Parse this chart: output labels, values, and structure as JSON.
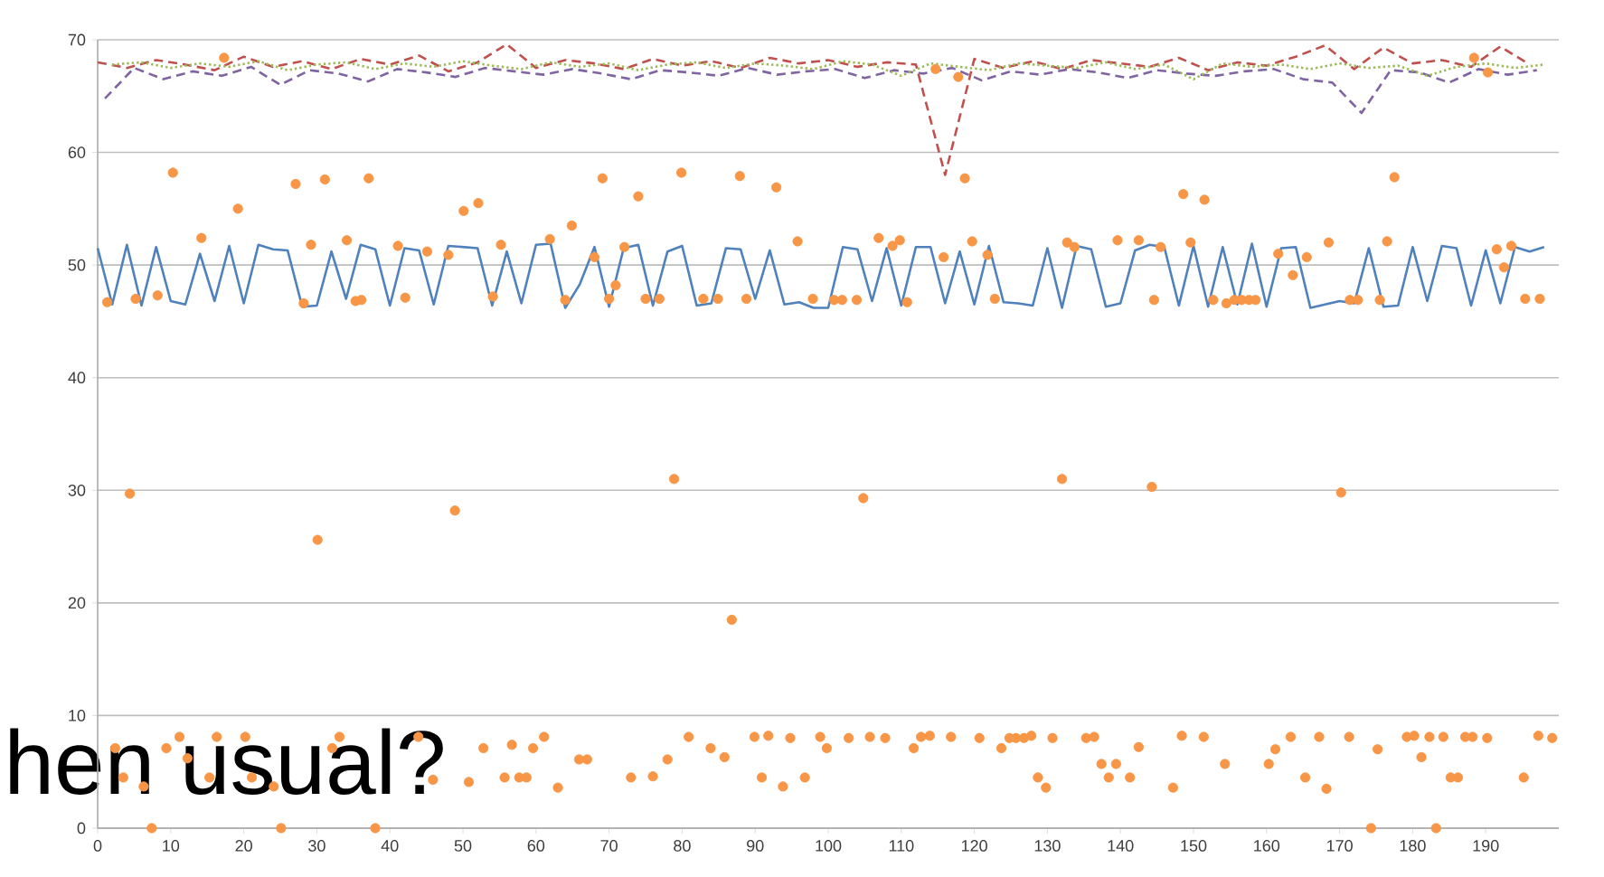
{
  "chart_data": {
    "type": "line",
    "annotations": [
      "hen usual?"
    ],
    "xlim": [
      0,
      200
    ],
    "xticks": [
      0,
      10,
      20,
      30,
      40,
      50,
      60,
      70,
      80,
      90,
      100,
      110,
      120,
      130,
      140,
      150,
      160,
      170,
      180,
      190
    ],
    "ylim": [
      0,
      70
    ],
    "yticks": [
      0,
      10,
      20,
      30,
      40,
      50,
      60,
      70
    ],
    "grid": "y",
    "series": [
      {
        "color": "#4f81bd",
        "line_style": "solid",
        "marker": "none",
        "x": [
          0,
          2,
          4,
          6,
          8,
          10,
          12,
          14,
          16,
          18,
          20,
          22,
          24,
          26,
          28,
          30,
          32,
          34,
          36,
          38,
          40,
          42,
          44,
          46,
          48,
          50,
          52,
          54,
          56,
          58,
          60,
          62,
          64,
          66,
          68,
          70,
          72,
          74,
          76,
          78,
          80,
          82,
          84,
          86,
          88,
          90,
          92,
          94,
          96,
          98,
          100,
          102,
          104,
          106,
          108,
          110,
          112,
          114,
          116,
          118,
          120,
          122,
          124,
          126,
          128,
          130,
          132,
          134,
          136,
          138,
          140,
          142,
          144,
          146,
          148,
          150,
          152,
          154,
          156,
          158,
          160,
          162,
          164,
          166,
          168,
          170,
          172,
          174,
          176,
          178,
          180,
          182,
          184,
          186,
          188,
          190,
          192,
          194,
          196,
          198
        ],
        "values": [
          51.5,
          46.5,
          51.8,
          46.4,
          51.6,
          46.8,
          46.5,
          51.0,
          46.8,
          51.7,
          46.6,
          51.8,
          51.4,
          51.3,
          46.3,
          46.4,
          51.2,
          47.0,
          51.8,
          51.4,
          46.4,
          51.5,
          51.3,
          46.5,
          51.7,
          51.6,
          51.5,
          46.4,
          51.2,
          46.6,
          51.8,
          51.9,
          46.2,
          48.3,
          51.6,
          46.3,
          51.5,
          51.8,
          46.4,
          51.2,
          51.7,
          46.4,
          46.6,
          51.5,
          51.4,
          47.0,
          51.3,
          46.5,
          46.7,
          46.2,
          46.2,
          51.6,
          51.4,
          46.8,
          51.5,
          46.4,
          51.6,
          51.6,
          46.6,
          51.2,
          46.5,
          51.7,
          46.7,
          46.6,
          46.4,
          51.5,
          46.2,
          51.7,
          51.4,
          46.3,
          46.6,
          51.3,
          51.8,
          51.6,
          46.4,
          51.7,
          46.3,
          51.6,
          46.5,
          51.9,
          46.3,
          51.5,
          51.6,
          46.2,
          46.5,
          46.8,
          46.6,
          51.5,
          46.3,
          46.4,
          51.6,
          46.8,
          51.7,
          51.5,
          46.4,
          51.3,
          46.6,
          51.6,
          51.2,
          51.6
        ]
      },
      {
        "color": "#c0504d",
        "line_style": "dashed",
        "marker": "none",
        "x": [
          0,
          4,
          8,
          12,
          16,
          20,
          24,
          28,
          32,
          36,
          40,
          44,
          48,
          52,
          56,
          60,
          64,
          68,
          72,
          76,
          80,
          84,
          88,
          92,
          96,
          100,
          104,
          108,
          112,
          116,
          120,
          124,
          128,
          132,
          136,
          140,
          144,
          148,
          152,
          156,
          160,
          164,
          168,
          172,
          176,
          180,
          184,
          188,
          192,
          196
        ],
        "values": [
          68.0,
          67.5,
          68.2,
          67.8,
          67.3,
          68.5,
          67.6,
          68.1,
          67.4,
          68.3,
          67.8,
          68.6,
          67.2,
          68.0,
          69.6,
          67.5,
          68.2,
          67.9,
          67.4,
          68.3,
          67.7,
          68.1,
          67.5,
          68.4,
          67.9,
          68.2,
          67.6,
          68.0,
          67.8,
          58.0,
          68.3,
          67.5,
          68.1,
          67.4,
          68.2,
          67.9,
          67.6,
          68.4,
          67.3,
          68.0,
          67.7,
          68.5,
          69.5,
          67.4,
          69.3,
          67.9,
          68.2,
          67.6,
          69.4,
          67.8
        ]
      },
      {
        "color": "#8064a2",
        "line_style": "dashed",
        "marker": "none",
        "x": [
          1,
          5,
          9,
          13,
          17,
          21,
          25,
          29,
          33,
          37,
          41,
          45,
          49,
          53,
          57,
          61,
          65,
          69,
          73,
          77,
          81,
          85,
          89,
          93,
          97,
          101,
          105,
          109,
          113,
          117,
          121,
          125,
          129,
          133,
          137,
          141,
          145,
          149,
          153,
          157,
          161,
          165,
          169,
          173,
          177,
          181,
          185,
          189,
          193,
          197
        ],
        "values": [
          64.8,
          67.5,
          66.5,
          67.2,
          66.8,
          67.6,
          66.0,
          67.3,
          67.0,
          66.3,
          67.4,
          67.1,
          66.7,
          67.5,
          67.2,
          66.9,
          67.4,
          67.0,
          66.5,
          67.3,
          67.1,
          66.8,
          67.5,
          66.9,
          67.2,
          67.4,
          66.6,
          67.3,
          67.0,
          67.5,
          66.4,
          67.2,
          66.9,
          67.4,
          67.1,
          66.6,
          67.3,
          67.0,
          66.8,
          67.2,
          67.4,
          66.5,
          66.2,
          63.5,
          67.3,
          67.1,
          66.2,
          67.4,
          66.9,
          67.3
        ]
      },
      {
        "color": "#9bbb59",
        "line_style": "dotted",
        "marker": "none",
        "x": [
          2,
          6,
          10,
          14,
          18,
          22,
          26,
          30,
          34,
          38,
          42,
          46,
          50,
          54,
          58,
          62,
          66,
          70,
          74,
          78,
          82,
          86,
          90,
          94,
          98,
          102,
          106,
          110,
          114,
          118,
          122,
          126,
          130,
          134,
          138,
          142,
          146,
          150,
          154,
          158,
          162,
          166,
          170,
          174,
          178,
          182,
          186,
          190,
          194,
          198
        ],
        "values": [
          67.8,
          68.0,
          67.5,
          67.9,
          67.6,
          68.1,
          67.3,
          67.8,
          68.0,
          67.4,
          67.9,
          67.6,
          68.1,
          67.7,
          67.4,
          68.0,
          67.6,
          67.9,
          67.3,
          67.8,
          68.0,
          67.5,
          67.9,
          67.7,
          67.4,
          68.1,
          67.8,
          66.8,
          67.9,
          67.6,
          67.3,
          67.9,
          67.7,
          67.5,
          68.0,
          67.4,
          67.8,
          66.5,
          67.9,
          67.6,
          67.8,
          67.4,
          67.9,
          67.5,
          67.7,
          66.8,
          67.6,
          67.9,
          67.5,
          67.8
        ]
      },
      {
        "type": "scatter",
        "color": "#f79646",
        "marker": "circle",
        "x": [
          2.4,
          3.5,
          4.4,
          6.3,
          7.4,
          9.4,
          11.2,
          12.3,
          15.3,
          16.3,
          20.2,
          21.1,
          24.1,
          25.1,
          30.1,
          32.1,
          33.1,
          38.0,
          43.9,
          45.9,
          48.9,
          50.8,
          52.8,
          55.7,
          56.7,
          57.7,
          58.7,
          59.6,
          61.1,
          63.0,
          65.9,
          67.0,
          73.0,
          76.0,
          78.0,
          78.9,
          80.9,
          83.9,
          85.8,
          86.8,
          89.9,
          90.9,
          91.8,
          93.8,
          94.8,
          96.8,
          98.9,
          99.8,
          102.8,
          104.8,
          105.7,
          107.8,
          111.7,
          112.7,
          113.9,
          116.8,
          120.7,
          123.7,
          124.8,
          125.7,
          126.8,
          127.8,
          128.7,
          129.8,
          130.7,
          132.0,
          135.3,
          136.4,
          137.4,
          138.4,
          139.4,
          141.3,
          142.5,
          144.3,
          147.2,
          148.4,
          151.4,
          154.3,
          160.3,
          161.2,
          163.3,
          165.3,
          167.2,
          168.2,
          170.2,
          171.3,
          174.3,
          175.2,
          179.2,
          180.2,
          181.2,
          182.3,
          183.2,
          184.2,
          185.2,
          186.2,
          187.2,
          188.2,
          190.2,
          195.2,
          197.2,
          199.1,
          1.3,
          5.2,
          8.2,
          10.3,
          14.2,
          17.3,
          19.2,
          27.1,
          28.2,
          29.2,
          31.1,
          34.1,
          35.3,
          36.1,
          37.1,
          41.1,
          42.1,
          45.1,
          48.0,
          50.1,
          52.1,
          54.1,
          55.2,
          61.9,
          64.0,
          64.9,
          68.0,
          69.1,
          70.0,
          70.9,
          72.1,
          74.0,
          75.0,
          76.9,
          79.9,
          82.9,
          84.9,
          87.9,
          88.8,
          92.9,
          95.8,
          97.9,
          100.8,
          101.9,
          103.9,
          106.9,
          108.8,
          109.8,
          110.8,
          114.7,
          115.8,
          117.8,
          118.7,
          119.7,
          121.8,
          122.8,
          132.7,
          133.7,
          139.6,
          142.5,
          144.6,
          145.5,
          148.6,
          149.6,
          151.5,
          152.7,
          154.5,
          155.6,
          156.6,
          157.6,
          158.5,
          161.6,
          163.6,
          165.5,
          168.5,
          171.4,
          172.5,
          175.5,
          176.5,
          177.5,
          188.4,
          190.3,
          191.5,
          192.5,
          193.5,
          195.4,
          197.4
        ],
        "values": [
          7.1,
          4.5,
          29.7,
          3.7,
          0,
          7.1,
          8.1,
          6.2,
          4.5,
          8.1,
          8.1,
          4.5,
          3.7,
          0,
          25.6,
          7.1,
          8.1,
          0,
          8.1,
          4.3,
          28.2,
          4.1,
          7.1,
          4.5,
          7.4,
          4.5,
          4.5,
          7.1,
          8.1,
          3.6,
          6.1,
          6.1,
          4.5,
          4.6,
          6.1,
          31.0,
          8.1,
          7.1,
          6.3,
          18.5,
          8.1,
          4.5,
          8.2,
          3.7,
          8.0,
          4.5,
          8.1,
          7.1,
          8.0,
          29.3,
          8.1,
          8.0,
          7.1,
          8.1,
          8.2,
          8.1,
          8.0,
          7.1,
          8.0,
          8.0,
          8.0,
          8.2,
          4.5,
          3.6,
          8.0,
          31.0,
          8.0,
          8.1,
          5.7,
          4.5,
          5.7,
          4.5,
          7.2,
          30.3,
          3.6,
          8.2,
          8.1,
          5.7,
          5.7,
          7.0,
          8.1,
          4.5,
          8.1,
          3.5,
          29.8,
          8.1,
          0,
          7.0,
          8.1,
          8.2,
          6.3,
          8.1,
          0,
          8.1,
          4.5,
          4.5,
          8.1,
          8.1,
          8.0,
          4.5,
          8.2,
          8.0,
          46.7,
          47.0,
          47.3,
          58.2,
          52.4,
          68.4,
          55.0,
          57.2,
          46.6,
          51.8,
          57.6,
          52.2,
          46.8,
          46.9,
          57.7,
          51.7,
          47.1,
          51.2,
          50.9,
          54.8,
          55.5,
          47.2,
          51.8,
          52.3,
          46.9,
          53.5,
          50.7,
          57.7,
          47.0,
          48.2,
          51.6,
          56.1,
          47.0,
          47.0,
          58.2,
          47.0,
          47.0,
          57.9,
          47.0,
          56.9,
          52.1,
          47.0,
          46.9,
          46.9,
          46.9,
          52.4,
          51.7,
          52.2,
          46.7,
          67.4,
          50.7,
          66.7,
          57.7,
          52.1,
          50.9,
          47.0,
          52.0,
          51.6,
          52.2,
          52.2,
          46.9,
          51.6,
          56.3,
          52.0,
          55.8,
          46.9,
          46.6,
          46.9,
          46.9,
          46.9,
          46.9,
          51.0,
          49.1,
          50.7,
          52.0,
          46.9,
          46.9,
          46.9,
          52.1,
          57.8,
          68.4,
          67.1,
          51.4,
          49.8,
          51.7,
          47.0,
          47.0
        ]
      }
    ]
  }
}
